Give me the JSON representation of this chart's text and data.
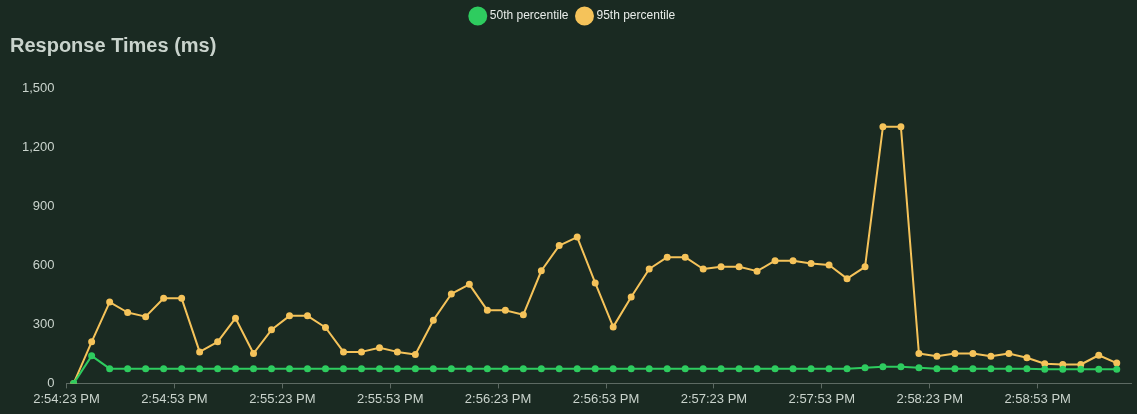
{
  "chart_data": {
    "type": "line",
    "title": "Response Times (ms)",
    "x": [
      14.90694,
      14.90833,
      14.90972,
      14.91111,
      14.9125,
      14.91389,
      14.91528,
      14.91667,
      14.91806,
      14.91944,
      14.92083,
      14.92222,
      14.92361,
      14.925,
      14.92639,
      14.92778,
      14.92917,
      14.93056,
      14.93194,
      14.93333,
      14.93472,
      14.93611,
      14.9375,
      14.93889,
      14.94028,
      14.94167,
      14.94306,
      14.94444,
      14.94583,
      14.94722,
      14.94861,
      14.95,
      14.95139,
      14.95278,
      14.95417,
      14.95556,
      14.95694,
      14.95833,
      14.95972,
      14.96111,
      14.9625,
      14.96389,
      14.96528,
      14.96667,
      14.96806,
      14.96944,
      14.97083,
      14.97222,
      14.97361,
      14.975,
      14.97639,
      14.97778,
      14.97917,
      14.98056,
      14.98194,
      14.98333,
      14.98472,
      14.98611,
      14.9875
    ],
    "series": [
      {
        "name": "50th percentile",
        "color": "#2ecc5f",
        "values": [
          0,
          140,
          75,
          75,
          75,
          75,
          75,
          75,
          75,
          75,
          75,
          75,
          75,
          75,
          75,
          75,
          75,
          75,
          75,
          75,
          75,
          75,
          75,
          75,
          75,
          75,
          75,
          75,
          75,
          75,
          75,
          75,
          75,
          75,
          75,
          75,
          75,
          75,
          75,
          75,
          75,
          75,
          75,
          75,
          80,
          85,
          85,
          80,
          75,
          75,
          75,
          75,
          75,
          75,
          72,
          72,
          72,
          72,
          72
        ]
      },
      {
        "name": "95th percentile",
        "color": "#f5c35a",
        "values": [
          0,
          211,
          413,
          360,
          339,
          432,
          432,
          160,
          211,
          331,
          152,
          272,
          343,
          343,
          284,
          160,
          160,
          181,
          160,
          147,
          321,
          454,
          503,
          371,
          371,
          349,
          572,
          700,
          743,
          510,
          287,
          439,
          581,
          641,
          641,
          581,
          592,
          592,
          570,
          623,
          623,
          609,
          601,
          532,
          592,
          1303,
          1303,
          152,
          138,
          152,
          152,
          138,
          152,
          130,
          100,
          96,
          96,
          143,
          103
        ]
      }
    ],
    "xlim": [
      14.90639,
      14.9886
    ],
    "xticks": [
      {
        "value": 14.90639,
        "label": "2:54:23 PM"
      },
      {
        "value": 14.91472,
        "label": "2:54:53 PM"
      },
      {
        "value": 14.92306,
        "label": "2:55:23 PM"
      },
      {
        "value": 14.93139,
        "label": "2:55:53 PM"
      },
      {
        "value": 14.93972,
        "label": "2:56:23 PM"
      },
      {
        "value": 14.94806,
        "label": "2:56:53 PM"
      },
      {
        "value": 14.95639,
        "label": "2:57:23 PM"
      },
      {
        "value": 14.96472,
        "label": "2:57:53 PM"
      },
      {
        "value": 14.97306,
        "label": "2:58:23 PM"
      },
      {
        "value": 14.98139,
        "label": "2:58:53 PM"
      }
    ],
    "ylim": [
      0,
      1500
    ],
    "yticks": [
      0,
      300,
      600,
      900,
      {
        "value": 1200,
        "label": "1,200"
      },
      {
        "value": 1500,
        "label": "1,500"
      }
    ],
    "grid": false,
    "legend": "top",
    "marker": "circle",
    "line_style": "solid"
  }
}
